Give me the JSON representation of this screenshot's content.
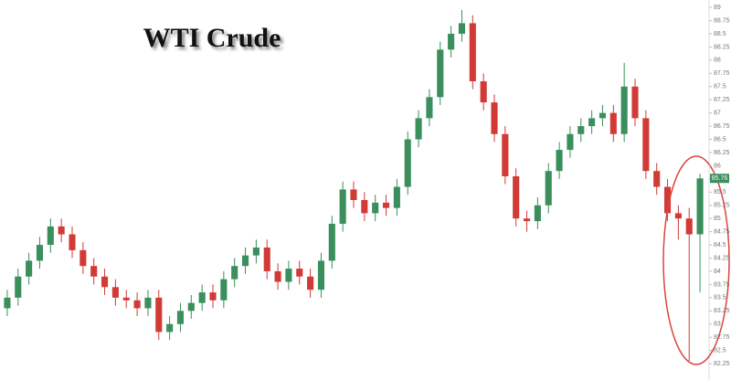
{
  "chart_data": {
    "type": "candlestick",
    "title": "WTI Crude",
    "open": [
      83.3,
      83.5,
      83.9,
      84.2,
      84.5,
      84.85,
      84.7,
      84.4,
      84.1,
      83.9,
      83.7,
      83.5,
      83.45,
      83.3,
      83.5,
      82.85,
      83.0,
      83.25,
      83.4,
      83.6,
      83.45,
      83.85,
      84.1,
      84.3,
      84.45,
      84.0,
      83.8,
      84.05,
      83.9,
      83.65,
      84.2,
      84.9,
      85.55,
      85.35,
      85.1,
      85.3,
      85.2,
      85.6,
      86.5,
      86.9,
      87.3,
      88.2,
      88.5,
      88.7,
      87.6,
      87.2,
      86.6,
      85.8,
      85.0,
      84.95,
      85.25,
      85.9,
      86.3,
      86.6,
      86.75,
      86.9,
      87.0,
      86.6,
      87.5,
      86.9,
      85.9,
      85.6,
      85.1,
      85.0,
      84.7
    ],
    "high": [
      83.65,
      84.05,
      84.35,
      84.65,
      85.0,
      85.0,
      84.85,
      84.55,
      84.25,
      84.05,
      83.85,
      83.65,
      83.6,
      83.65,
      83.65,
      83.15,
      83.4,
      83.55,
      83.75,
      83.75,
      84.0,
      84.25,
      84.45,
      84.6,
      84.6,
      84.15,
      84.2,
      84.2,
      84.05,
      84.35,
      85.05,
      85.7,
      85.7,
      85.5,
      85.45,
      85.45,
      85.75,
      86.65,
      87.05,
      87.45,
      88.35,
      88.65,
      88.95,
      88.85,
      87.75,
      87.35,
      86.75,
      85.95,
      85.15,
      85.4,
      86.05,
      86.45,
      86.75,
      86.9,
      87.05,
      87.15,
      87.15,
      87.95,
      87.65,
      87.05,
      86.05,
      85.75,
      85.25,
      85.2,
      85.85
    ],
    "low": [
      83.15,
      83.35,
      83.75,
      84.05,
      84.35,
      84.55,
      84.25,
      83.95,
      83.75,
      83.55,
      83.35,
      83.3,
      83.15,
      83.15,
      82.7,
      82.7,
      82.85,
      83.1,
      83.25,
      83.3,
      83.3,
      83.7,
      83.95,
      84.15,
      83.85,
      83.65,
      83.65,
      83.75,
      83.5,
      83.5,
      84.05,
      84.75,
      85.2,
      84.95,
      84.95,
      85.05,
      85.05,
      85.45,
      86.35,
      86.75,
      87.15,
      88.05,
      88.35,
      87.45,
      87.05,
      86.45,
      85.65,
      84.85,
      84.75,
      84.8,
      85.1,
      85.75,
      86.15,
      86.45,
      86.6,
      86.75,
      86.45,
      86.45,
      86.75,
      85.75,
      85.45,
      84.95,
      84.6,
      82.3,
      83.6
    ],
    "close": [
      83.5,
      83.9,
      84.2,
      84.5,
      84.85,
      84.7,
      84.4,
      84.1,
      83.9,
      83.7,
      83.5,
      83.45,
      83.3,
      83.5,
      82.85,
      83.0,
      83.25,
      83.4,
      83.6,
      83.45,
      83.85,
      84.1,
      84.3,
      84.45,
      84.0,
      83.8,
      84.05,
      83.9,
      83.65,
      84.2,
      84.9,
      85.55,
      85.35,
      85.1,
      85.3,
      85.2,
      85.6,
      86.5,
      86.9,
      87.3,
      88.2,
      88.5,
      88.7,
      87.6,
      87.2,
      86.6,
      85.8,
      85.0,
      84.95,
      85.25,
      85.9,
      86.3,
      86.6,
      86.75,
      86.9,
      87.0,
      86.6,
      87.5,
      86.9,
      85.9,
      85.6,
      85.1,
      85.0,
      84.7,
      85.76
    ],
    "up_color": "#3a8f5c",
    "down_color": "#d23a36",
    "last_price": 85.76,
    "ylim": [
      81.94,
      89.14
    ],
    "yticks": [
      82.25,
      82.5,
      82.75,
      83,
      83.25,
      83.5,
      83.75,
      84,
      84.25,
      84.5,
      84.75,
      85,
      85.25,
      85.5,
      85.75,
      86,
      86.25,
      86.5,
      86.75,
      87,
      87.25,
      87.5,
      87.75,
      88,
      88.25,
      88.5,
      88.75,
      89
    ]
  }
}
